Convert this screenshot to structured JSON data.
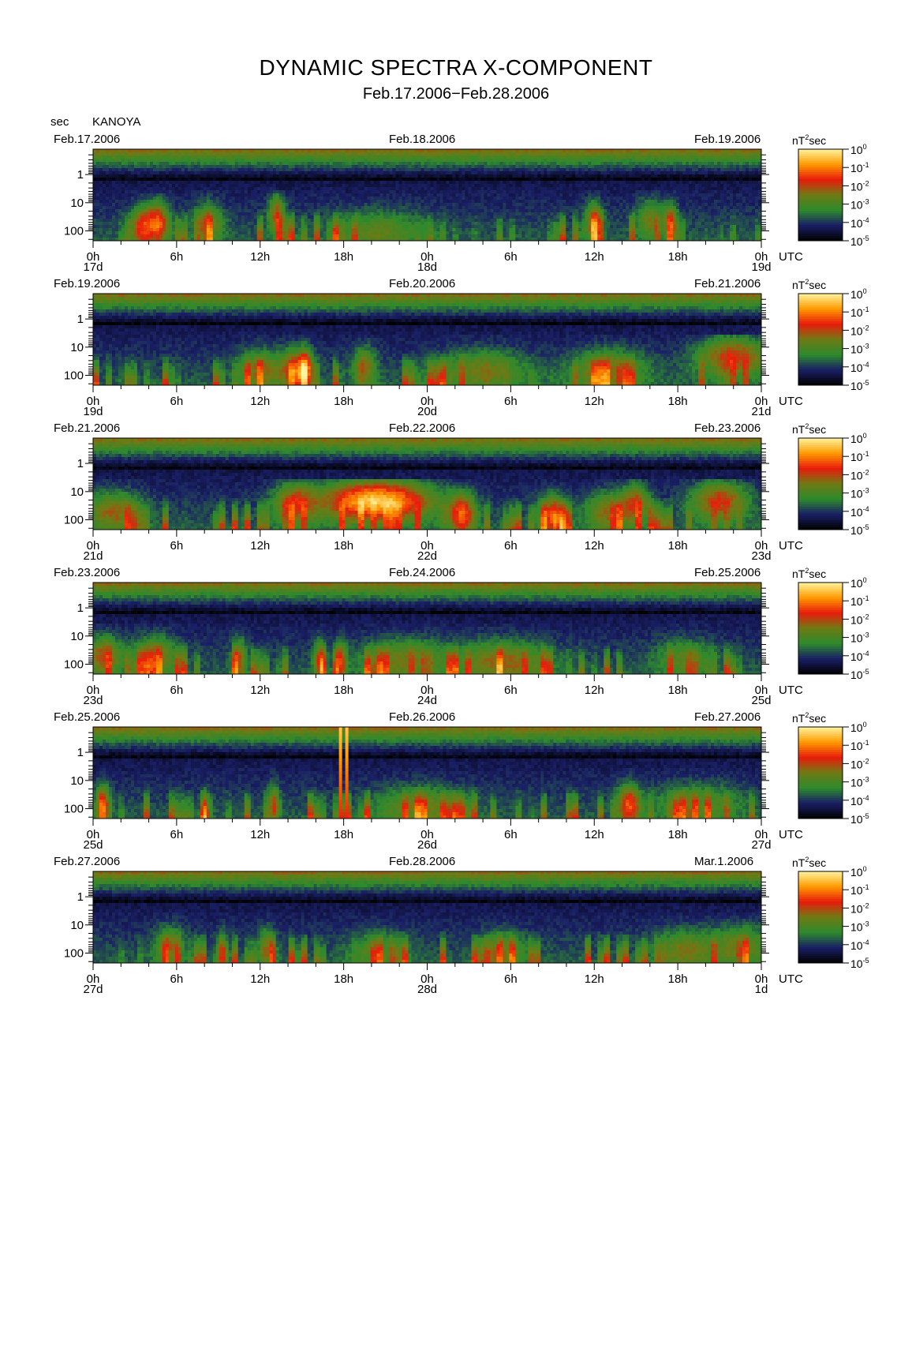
{
  "title": "DYNAMIC SPECTRA X-COMPONENT",
  "subtitle": "Feb.17.2006−Feb.28.2006",
  "y_unit": "sec",
  "station": "KANOYA",
  "colorbar_unit_base": "nT",
  "colorbar_unit_exp": "2",
  "colorbar_unit_tail": "sec",
  "utc_label": "UTC",
  "colors": {
    "low": "#000000",
    "blue": "#1a1f66",
    "green": "#2d8a2d",
    "olive": "#6f7a14",
    "red": "#e81c0c",
    "orange": "#ff9a00",
    "yellow": "#fff5a0"
  },
  "chart_data": [
    {
      "type": "heatmap",
      "date_labels": [
        "Feb.17.2006",
        "Feb.18.2006",
        "Feb.19.2006"
      ],
      "x_ticks": [
        "0h",
        "6h",
        "12h",
        "18h",
        "0h",
        "6h",
        "12h",
        "18h",
        "0h"
      ],
      "day_labels": [
        "17d",
        "18d",
        "19d"
      ],
      "y_ticks": [
        "1",
        "10",
        "100"
      ],
      "colorbar_ticks": [
        {
          "base": "10",
          "exp": "0"
        },
        {
          "base": "10",
          "exp": "-1"
        },
        {
          "base": "10",
          "exp": "-2"
        },
        {
          "base": "10",
          "exp": "-3"
        },
        {
          "base": "10",
          "exp": "-4"
        },
        {
          "base": "10",
          "exp": "-5"
        }
      ],
      "events": [
        [
          3.5,
          0.8,
          30,
          3.4,
          0.8
        ],
        [
          4.7,
          0.8,
          20,
          3.4,
          0.9
        ],
        [
          8.3,
          1.0,
          20,
          3.6,
          0.6
        ],
        [
          13.2,
          0.6,
          10,
          3.6,
          0.7
        ],
        [
          20.5,
          3.0,
          40,
          3.4,
          0.4
        ],
        [
          36,
          0.6,
          20,
          3.5,
          0.8
        ],
        [
          40,
          1.0,
          15,
          3.5,
          0.5
        ],
        [
          41.5,
          0.5,
          20,
          3.5,
          0.6
        ]
      ],
      "bursts": []
    },
    {
      "type": "heatmap",
      "date_labels": [
        "Feb.19.2006",
        "Feb.20.2006",
        "Feb.21.2006"
      ],
      "x_ticks": [
        "0h",
        "6h",
        "12h",
        "18h",
        "0h",
        "6h",
        "12h",
        "18h",
        "0h"
      ],
      "day_labels": [
        "19d",
        "20d",
        "21d"
      ],
      "y_ticks": [
        "1",
        "10",
        "100"
      ],
      "colorbar_ticks": [
        {
          "base": "10",
          "exp": "0"
        },
        {
          "base": "10",
          "exp": "-1"
        },
        {
          "base": "10",
          "exp": "-2"
        },
        {
          "base": "10",
          "exp": "-3"
        },
        {
          "base": "10",
          "exp": "-4"
        },
        {
          "base": "10",
          "exp": "-5"
        }
      ],
      "events": [
        [
          12,
          1.5,
          25,
          3.6,
          0.6
        ],
        [
          14.5,
          1.0,
          25,
          3.6,
          0.8
        ],
        [
          15.3,
          0.5,
          25,
          3.6,
          0.8
        ],
        [
          19.5,
          0.8,
          20,
          3.6,
          0.6
        ],
        [
          28,
          3.0,
          25,
          3.4,
          0.5
        ],
        [
          37,
          2.5,
          25,
          3.3,
          0.6
        ],
        [
          46,
          2.5,
          8,
          3.0,
          0.8
        ]
      ],
      "bursts": []
    },
    {
      "type": "heatmap",
      "date_labels": [
        "Feb.21.2006",
        "Feb.22.2006",
        "Feb.23.2006"
      ],
      "x_ticks": [
        "0h",
        "6h",
        "12h",
        "18h",
        "0h",
        "6h",
        "12h",
        "18h",
        "0h"
      ],
      "day_labels": [
        "21d",
        "22d",
        "23d"
      ],
      "y_ticks": [
        "1",
        "10",
        "100"
      ],
      "colorbar_ticks": [
        {
          "base": "10",
          "exp": "0"
        },
        {
          "base": "10",
          "exp": "-1"
        },
        {
          "base": "10",
          "exp": "-2"
        },
        {
          "base": "10",
          "exp": "-3"
        },
        {
          "base": "10",
          "exp": "-4"
        },
        {
          "base": "10",
          "exp": "-5"
        }
      ],
      "events": [
        [
          1.5,
          2.0,
          20,
          3.3,
          0.6
        ],
        [
          14.5,
          1.5,
          10,
          3.0,
          0.8
        ],
        [
          19,
          3.0,
          8,
          3.0,
          0.9
        ],
        [
          22,
          3.0,
          8,
          3.0,
          0.8
        ],
        [
          26.5,
          1.0,
          25,
          3.4,
          0.9
        ],
        [
          33,
          1.0,
          30,
          3.5,
          0.9
        ],
        [
          37,
          1.5,
          20,
          3.4,
          0.6
        ],
        [
          39,
          1.0,
          10,
          3.2,
          0.7
        ],
        [
          45,
          2.0,
          8,
          3.0,
          0.8
        ]
      ],
      "bursts": []
    },
    {
      "type": "heatmap",
      "date_labels": [
        "Feb.23.2006",
        "Feb.24.2006",
        "Feb.25.2006"
      ],
      "x_ticks": [
        "0h",
        "6h",
        "12h",
        "18h",
        "0h",
        "6h",
        "12h",
        "18h",
        "0h"
      ],
      "day_labels": [
        "23d",
        "24d",
        "25d"
      ],
      "y_ticks": [
        "1",
        "10",
        "100"
      ],
      "colorbar_ticks": [
        {
          "base": "10",
          "exp": "0"
        },
        {
          "base": "10",
          "exp": "-1"
        },
        {
          "base": "10",
          "exp": "-2"
        },
        {
          "base": "10",
          "exp": "-3"
        },
        {
          "base": "10",
          "exp": "-4"
        },
        {
          "base": "10",
          "exp": "-5"
        }
      ],
      "events": [
        [
          0.8,
          1.2,
          20,
          3.2,
          0.7
        ],
        [
          4.5,
          1.5,
          20,
          3.3,
          0.6
        ],
        [
          10.5,
          0.5,
          25,
          3.5,
          0.6
        ],
        [
          16.3,
          0.4,
          35,
          3.5,
          0.8
        ],
        [
          17.8,
          0.4,
          35,
          3.5,
          0.8
        ],
        [
          22.5,
          3.0,
          25,
          3.4,
          0.5
        ],
        [
          29.5,
          3.0,
          30,
          3.4,
          0.6
        ],
        [
          42.5,
          2.0,
          25,
          3.4,
          0.4
        ]
      ],
      "bursts": []
    },
    {
      "type": "heatmap",
      "date_labels": [
        "Feb.25.2006",
        "Feb.26.2006",
        "Feb.27.2006"
      ],
      "x_ticks": [
        "0h",
        "6h",
        "12h",
        "18h",
        "0h",
        "6h",
        "12h",
        "18h",
        "0h"
      ],
      "day_labels": [
        "25d",
        "26d",
        "27d"
      ],
      "y_ticks": [
        "1",
        "10",
        "100"
      ],
      "colorbar_ticks": [
        {
          "base": "10",
          "exp": "0"
        },
        {
          "base": "10",
          "exp": "-1"
        },
        {
          "base": "10",
          "exp": "-2"
        },
        {
          "base": "10",
          "exp": "-3"
        },
        {
          "base": "10",
          "exp": "-4"
        },
        {
          "base": "10",
          "exp": "-5"
        }
      ],
      "events": [
        [
          0.7,
          0.5,
          30,
          3.4,
          0.8
        ],
        [
          8.2,
          0.3,
          60,
          3.6,
          0.6
        ],
        [
          13,
          0.4,
          30,
          3.5,
          0.7
        ],
        [
          23.5,
          3.0,
          35,
          3.5,
          0.5
        ],
        [
          38.5,
          0.8,
          30,
          3.5,
          0.9
        ],
        [
          43.5,
          3.0,
          25,
          3.4,
          0.4
        ]
      ],
      "bursts": [
        [
          18,
          0.9
        ]
      ]
    },
    {
      "type": "heatmap",
      "date_labels": [
        "Feb.27.2006",
        "Feb.28.2006",
        "Mar.1.2006"
      ],
      "x_ticks": [
        "0h",
        "6h",
        "12h",
        "18h",
        "0h",
        "6h",
        "12h",
        "18h",
        "0h"
      ],
      "day_labels": [
        "27d",
        "28d",
        "1d"
      ],
      "y_ticks": [
        "1",
        "10",
        "100"
      ],
      "colorbar_ticks": [
        {
          "base": "10",
          "exp": "0"
        },
        {
          "base": "10",
          "exp": "-1"
        },
        {
          "base": "10",
          "exp": "-2"
        },
        {
          "base": "10",
          "exp": "-3"
        },
        {
          "base": "10",
          "exp": "-4"
        },
        {
          "base": "10",
          "exp": "-5"
        }
      ],
      "events": [
        [
          5.5,
          1.0,
          25,
          3.5,
          0.6
        ],
        [
          9.3,
          0.4,
          50,
          3.5,
          0.8
        ],
        [
          12.5,
          0.6,
          30,
          3.6,
          0.6
        ],
        [
          20.5,
          2.0,
          35,
          3.6,
          0.4
        ],
        [
          29.5,
          1.5,
          35,
          3.5,
          0.5
        ],
        [
          42.5,
          2.0,
          30,
          3.5,
          0.5
        ],
        [
          46.5,
          2.0,
          20,
          3.4,
          0.5
        ]
      ],
      "bursts": []
    }
  ]
}
